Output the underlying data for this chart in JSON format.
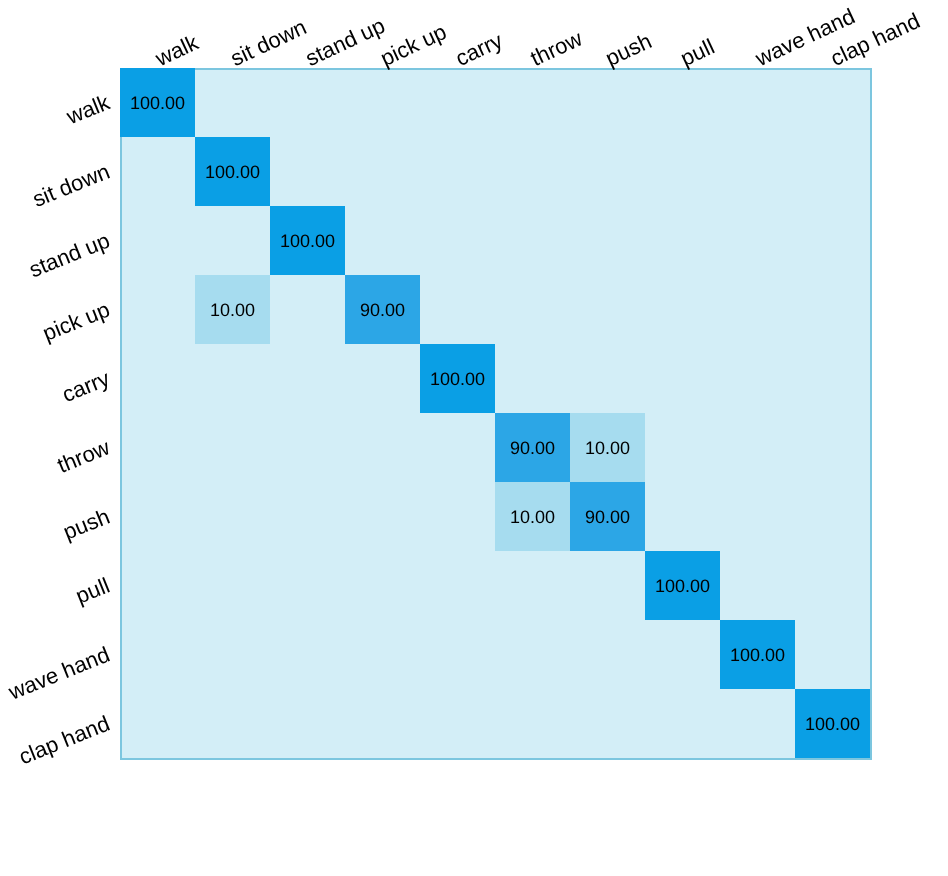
{
  "chart_data": {
    "type": "heatmap",
    "categories": [
      "walk",
      "sit down",
      "stand up",
      "pick up",
      "carry",
      "throw",
      "push",
      "pull",
      "wave hand",
      "clap hand"
    ],
    "y_categories": [
      "walk",
      "sit down",
      "stand up",
      "pick up",
      "carry",
      "throw",
      "push",
      "pull",
      "wave hand",
      "clap hand"
    ],
    "cells": [
      [
        100,
        null,
        null,
        null,
        null,
        null,
        null,
        null,
        null,
        null
      ],
      [
        null,
        100,
        null,
        null,
        null,
        null,
        null,
        null,
        null,
        null
      ],
      [
        null,
        null,
        100,
        null,
        null,
        null,
        null,
        null,
        null,
        null
      ],
      [
        null,
        10,
        null,
        90,
        null,
        null,
        null,
        null,
        null,
        null
      ],
      [
        null,
        null,
        null,
        null,
        100,
        null,
        null,
        null,
        null,
        null
      ],
      [
        null,
        null,
        null,
        null,
        null,
        90,
        10,
        null,
        null,
        null
      ],
      [
        null,
        null,
        null,
        null,
        null,
        10,
        90,
        null,
        null,
        null
      ],
      [
        null,
        null,
        null,
        null,
        null,
        null,
        null,
        100,
        null,
        null
      ],
      [
        null,
        null,
        null,
        null,
        null,
        null,
        null,
        null,
        100,
        null
      ],
      [
        null,
        null,
        null,
        null,
        null,
        null,
        null,
        null,
        null,
        100
      ]
    ],
    "cell_labels": [
      [
        "100.00",
        null,
        null,
        null,
        null,
        null,
        null,
        null,
        null,
        null
      ],
      [
        null,
        "100.00",
        null,
        null,
        null,
        null,
        null,
        null,
        null,
        null
      ],
      [
        null,
        null,
        "100.00",
        null,
        null,
        null,
        null,
        null,
        null,
        null
      ],
      [
        null,
        "10.00",
        null,
        "90.00",
        null,
        null,
        null,
        null,
        null,
        null
      ],
      [
        null,
        null,
        null,
        null,
        "100.00",
        null,
        null,
        null,
        null,
        null
      ],
      [
        null,
        null,
        null,
        null,
        null,
        "90.00",
        "10.00",
        null,
        null,
        null
      ],
      [
        null,
        null,
        null,
        null,
        null,
        "10.00",
        "90.00",
        null,
        null,
        null
      ],
      [
        null,
        null,
        null,
        null,
        null,
        null,
        null,
        "100.00",
        null,
        null
      ],
      [
        null,
        null,
        null,
        null,
        null,
        null,
        null,
        null,
        "100.00",
        null
      ],
      [
        null,
        null,
        null,
        null,
        null,
        null,
        null,
        null,
        null,
        "100.00"
      ]
    ]
  }
}
